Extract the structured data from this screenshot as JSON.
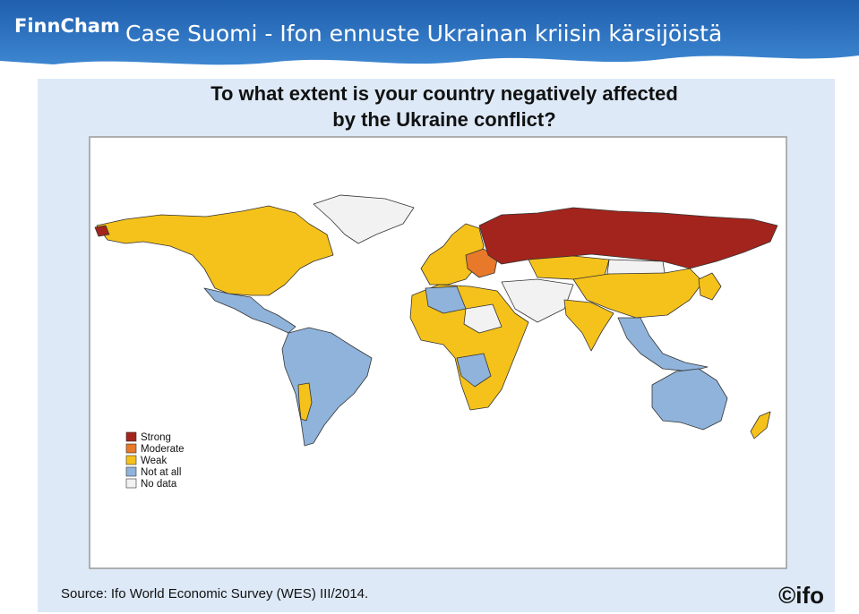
{
  "header": {
    "logo": "FinnCham",
    "title": "Case Suomi - Ifon ennuste Ukrainan kriisin kärsijöistä"
  },
  "map": {
    "title_lines": [
      "To what extent is your country negatively affected",
      "by the Ukraine conflict?"
    ],
    "legend": {
      "items": [
        {
          "label": "Strong",
          "color": "#a3241c"
        },
        {
          "label": "Moderate",
          "color": "#e8782a"
        },
        {
          "label": "Weak",
          "color": "#f5c21b"
        },
        {
          "label": "Not at all",
          "color": "#8fb3da"
        },
        {
          "label": "No data",
          "color": "#f2f2f2"
        }
      ]
    }
  },
  "footer": {
    "source": "Source: Ifo World Economic Survey (WES) III/2014.",
    "logo": "©ifo"
  }
}
